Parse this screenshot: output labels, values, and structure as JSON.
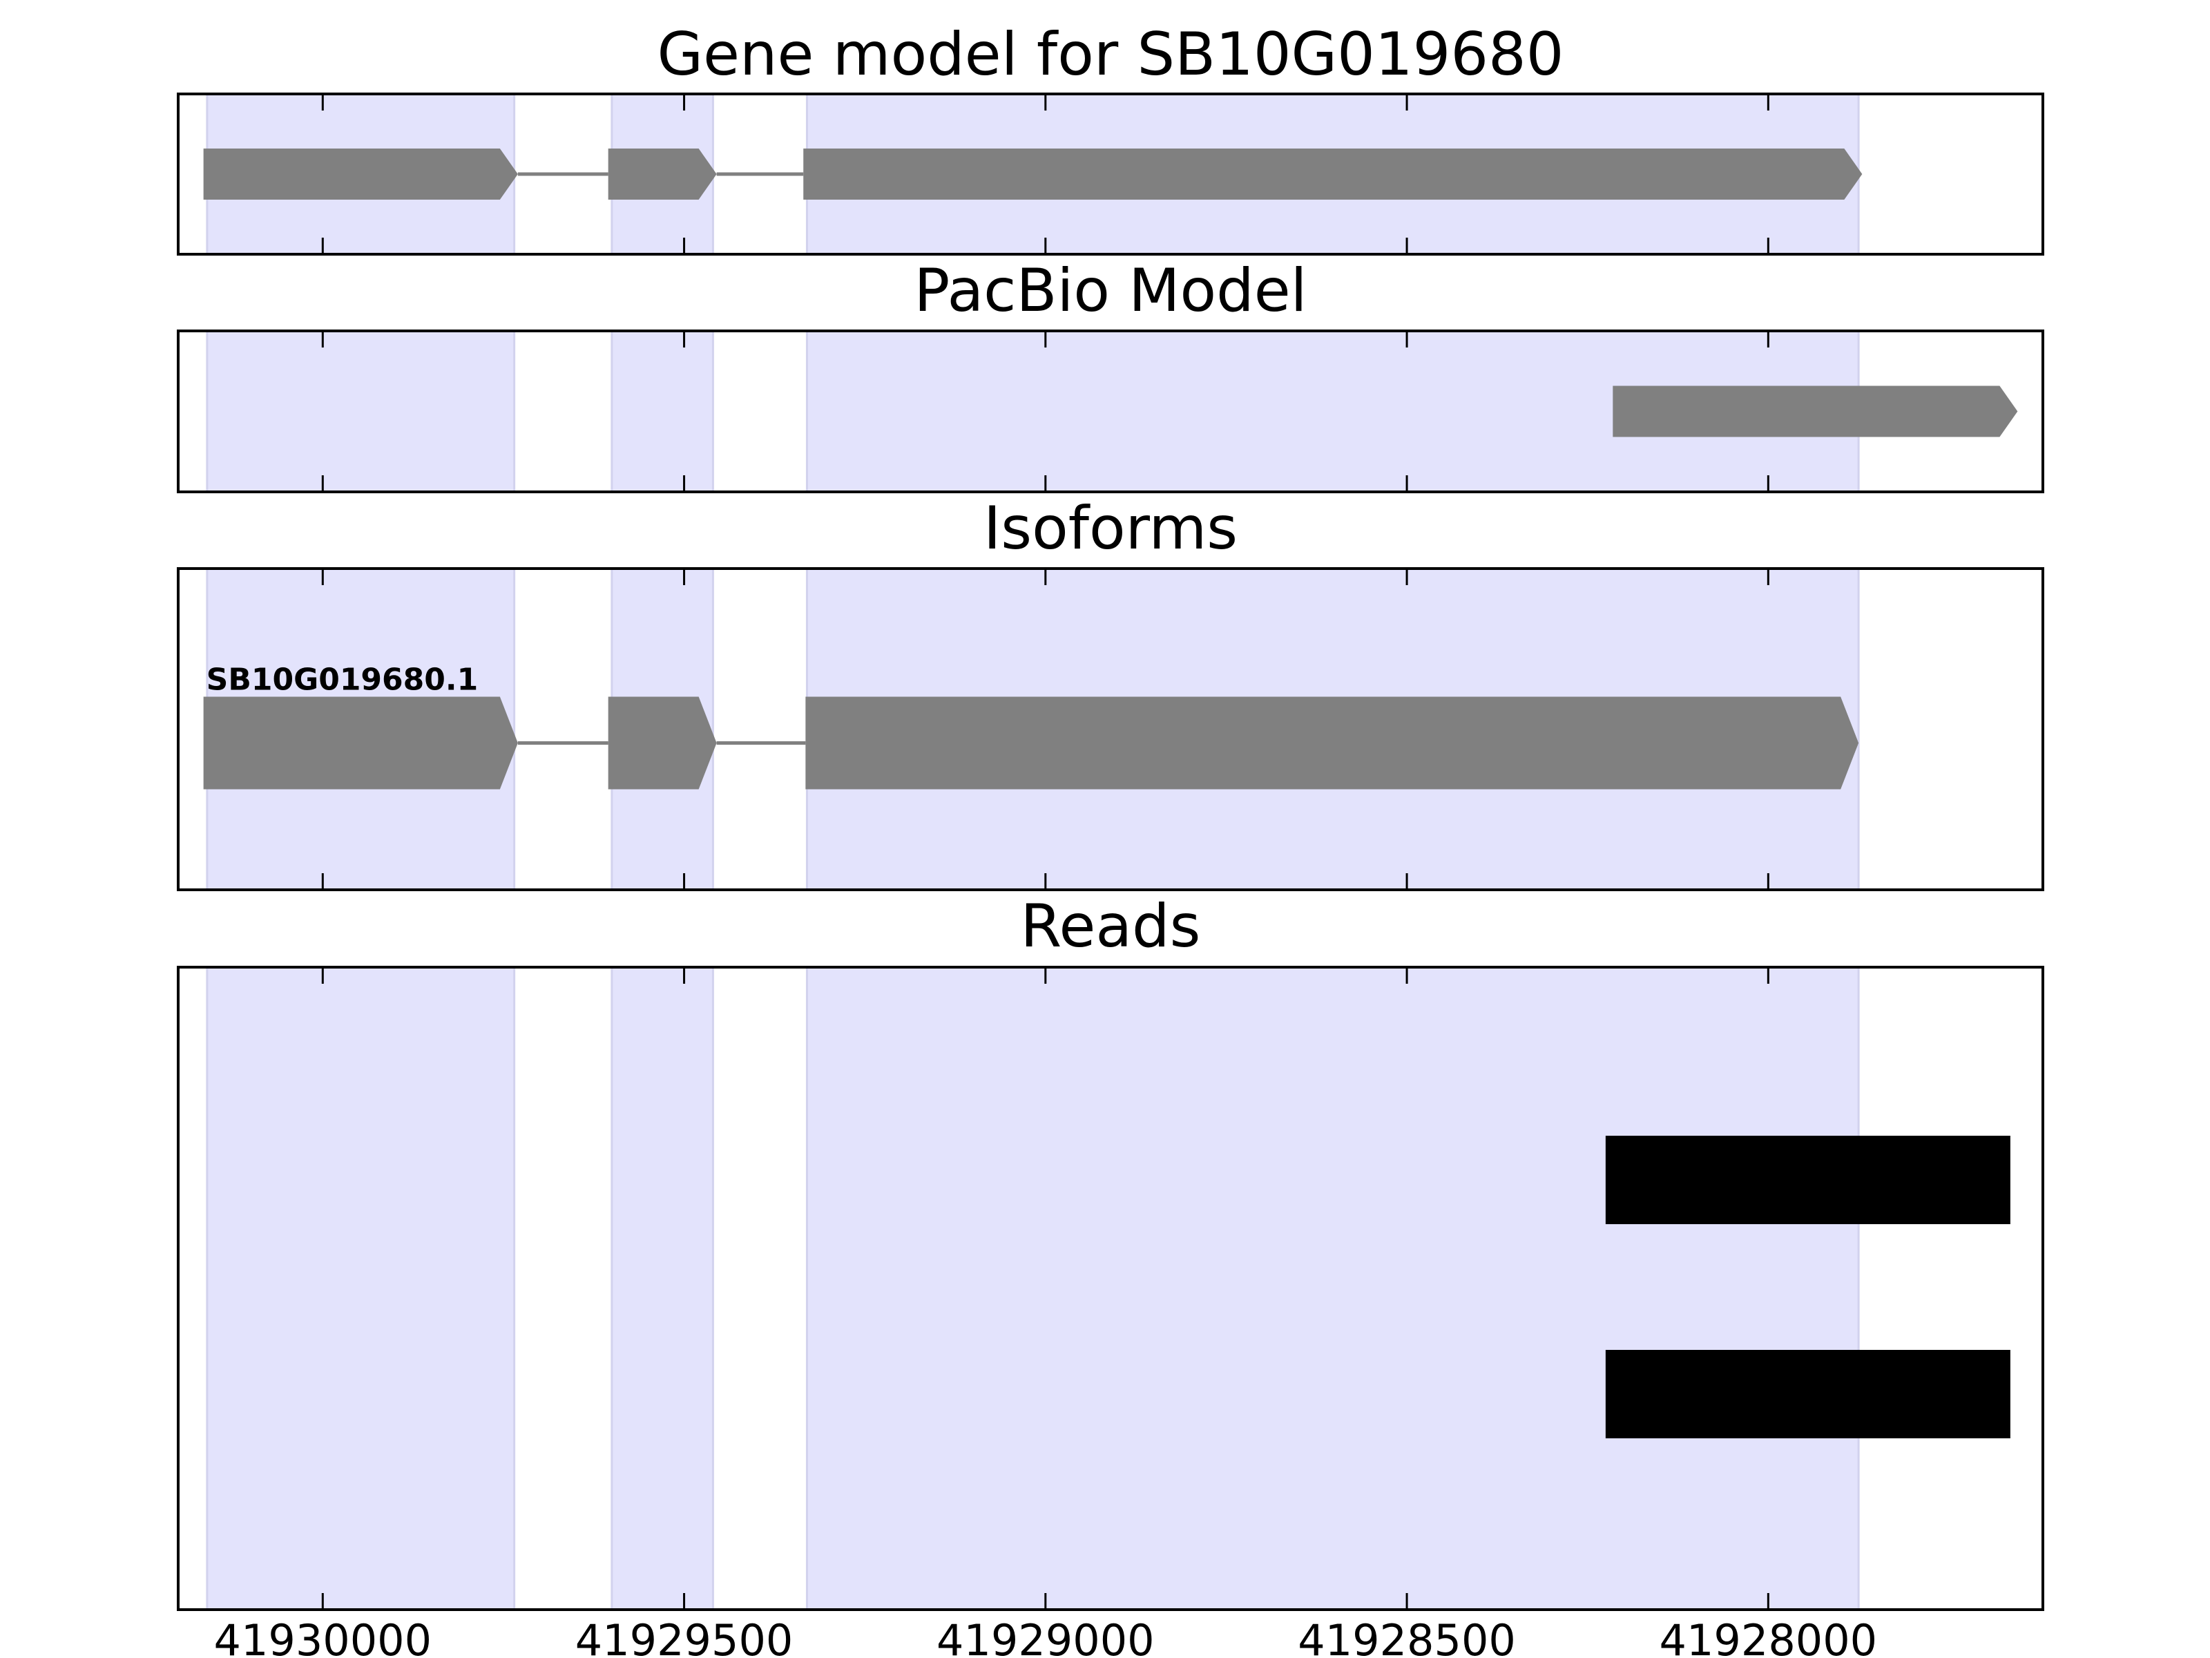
{
  "figure": {
    "chart_data": {
      "type": "gene-track",
      "x_axis": {
        "range": [
          41930200,
          41927620
        ],
        "direction": "decreasing",
        "ticks": [
          41930000,
          41929500,
          41929000,
          41928500,
          41928000
        ],
        "tick_labels": [
          "41930000",
          "41929500",
          "41929000",
          "41928500",
          "41928000"
        ]
      },
      "highlight_regions": [
        [
          41930160,
          41929735
        ],
        [
          41929600,
          41929460
        ],
        [
          41929330,
          41927875
        ]
      ],
      "highlight_color": "#e3e3fc",
      "feature_color": "#808080",
      "read_color": "#000000",
      "panels": [
        {
          "id": "gene-model",
          "title": "Gene model for SB10G019680",
          "tracks": [
            {
              "label": "",
              "exons": [
                [
                  41930165,
                  41929730
                ],
                [
                  41929605,
                  41929455
                ],
                [
                  41929335,
                  41927870
                ]
              ]
            }
          ]
        },
        {
          "id": "pacbio-model",
          "title": "PacBio Model",
          "tracks": [
            {
              "label": "",
              "exons": [
                [
                  41928215,
                  41927655
                ]
              ]
            }
          ]
        },
        {
          "id": "isoforms",
          "title": "Isoforms",
          "tracks": [
            {
              "label": "SB10G019680.1",
              "exons": [
                [
                  41930165,
                  41929730
                ],
                [
                  41929605,
                  41929455
                ],
                [
                  41929332,
                  41927875
                ]
              ]
            }
          ]
        },
        {
          "id": "reads",
          "title": "Reads",
          "reads": [
            [
              41928225,
              41927665
            ],
            [
              41928225,
              41927665
            ]
          ]
        }
      ]
    }
  }
}
